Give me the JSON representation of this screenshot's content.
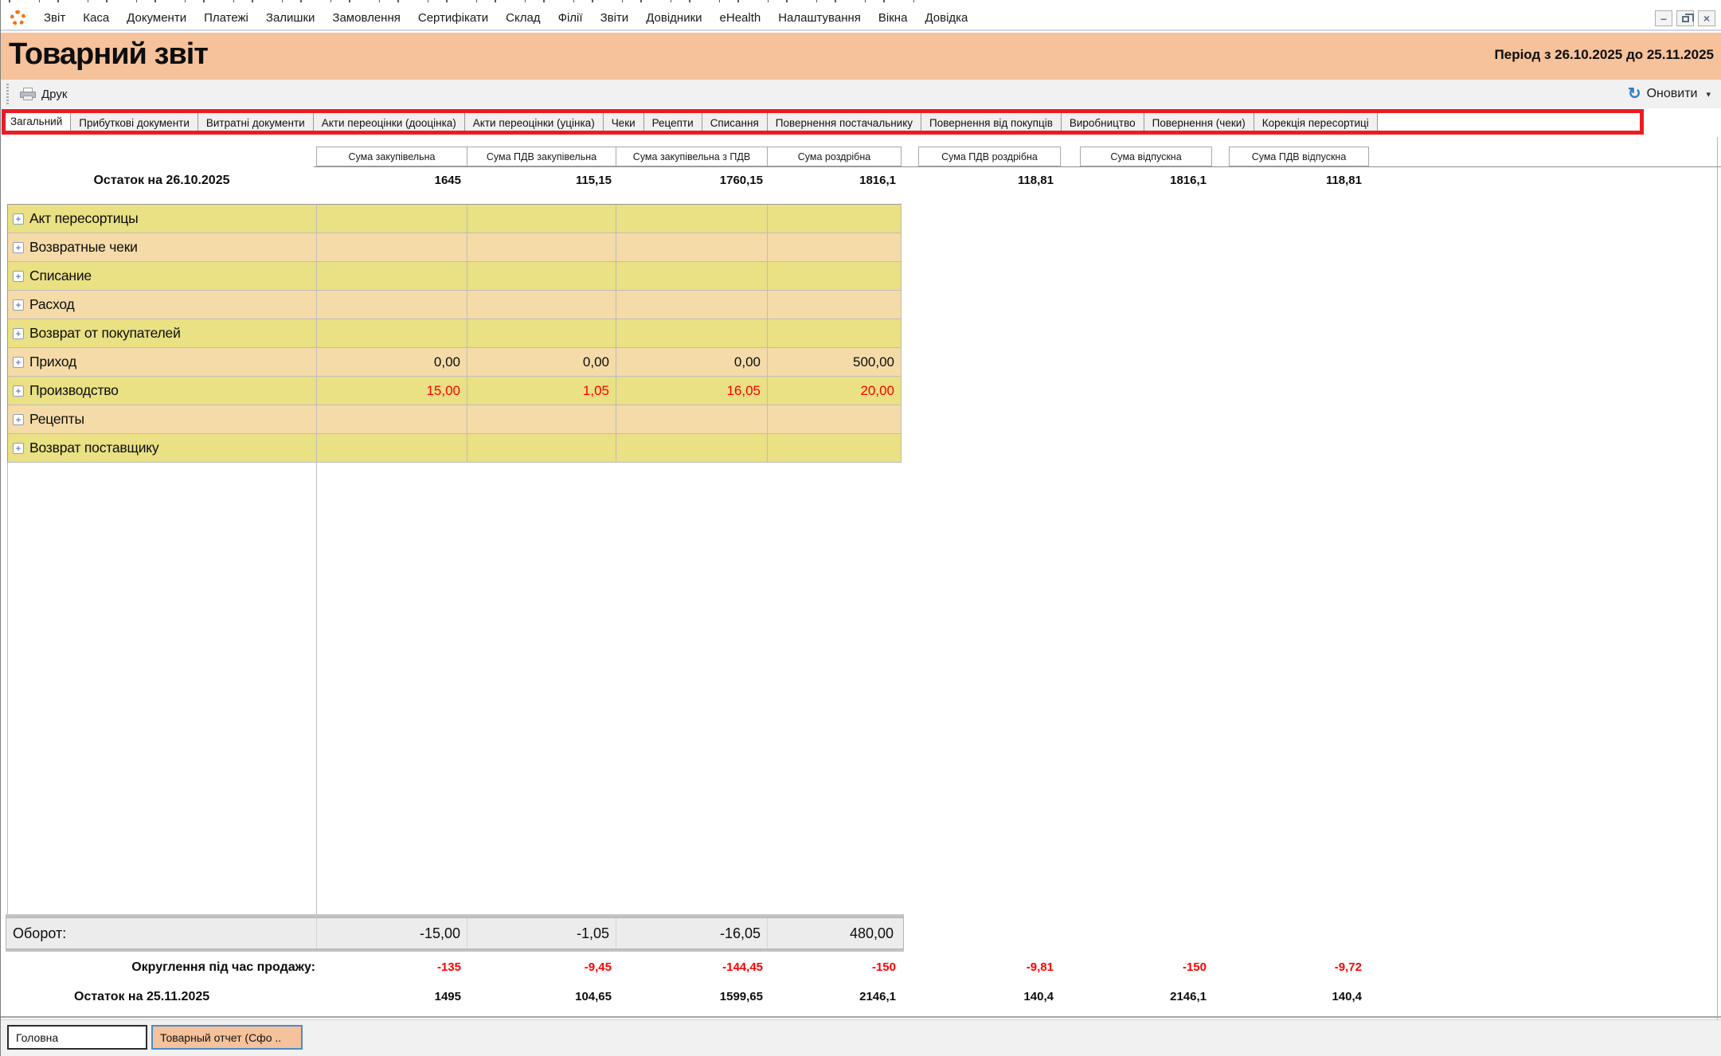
{
  "menu": {
    "items": [
      "Звіт",
      "Каса",
      "Документи",
      "Платежі",
      "Залишки",
      "Замовлення",
      "Сертифікати",
      "Склад",
      "Філії",
      "Звіти",
      "Довідники",
      "eHealth",
      "Налаштування",
      "Вікна",
      "Довідка"
    ]
  },
  "icons": {
    "minimize": "–",
    "close": "×",
    "refresh": "↻",
    "dropdown": "▾",
    "expand": "+"
  },
  "header": {
    "title": "Товарний звіт",
    "period": "Період з 26.10.2025 до 25.11.2025"
  },
  "toolbar": {
    "print_label": "Друк",
    "refresh_label": "Оновити"
  },
  "tabs": {
    "items": [
      "Загальний",
      "Прибуткові документи",
      "Витратні документи",
      "Акти переоцінки (дооцінка)",
      "Акти переоцінки (уцінка)",
      "Чеки",
      "Рецепти",
      "Списання",
      "Повернення постачальнику",
      "Повернення від покупців",
      "Виробництво",
      "Повернення (чеки)",
      "Корекція пересортиці"
    ],
    "active": "Загальний"
  },
  "report": {
    "columns": [
      "Сума закупівельна",
      "Сума ПДВ закупівельна",
      "Сума закупівельна з ПДВ",
      "Сума роздрібна",
      "Сума ПДВ роздрібна",
      "Сума відпускна",
      "Сума ПДВ відпускна"
    ],
    "opening_balance": {
      "label": "Остаток на 26.10.2025",
      "values": [
        "1645",
        "115,15",
        "1760,15",
        "1816,1",
        "118,81",
        "1816,1",
        "118,81"
      ]
    },
    "rows": [
      {
        "label": "Акт пересортицы",
        "values": [
          "",
          "",
          "",
          ""
        ]
      },
      {
        "label": "Возвратные чеки",
        "values": [
          "",
          "",
          "",
          ""
        ]
      },
      {
        "label": "Списание",
        "values": [
          "",
          "",
          "",
          ""
        ]
      },
      {
        "label": "Расход",
        "values": [
          "",
          "",
          "",
          ""
        ]
      },
      {
        "label": "Возврат от покупателей",
        "values": [
          "",
          "",
          "",
          ""
        ]
      },
      {
        "label": "Приход",
        "values": [
          "0,00",
          "0,00",
          "0,00",
          "500,00"
        ]
      },
      {
        "label": "Производство",
        "values": [
          "15,00",
          "1,05",
          "16,05",
          "20,00"
        ]
      },
      {
        "label": "Рецепты",
        "values": [
          "",
          "",
          "",
          ""
        ]
      },
      {
        "label": "Возврат поставщику",
        "values": [
          "",
          "",
          "",
          ""
        ]
      }
    ],
    "turnover": {
      "label": "Оборот:",
      "values": [
        "-15,00",
        "-1,05",
        "-16,05",
        "480,00"
      ]
    },
    "rounding": {
      "label": "Округлення під час продажу:",
      "values": [
        "-135",
        "-9,45",
        "-144,45",
        "-150",
        "-9,81",
        "-150",
        "-9,72"
      ]
    },
    "closing_balance": {
      "label": "Остаток на 25.11.2025",
      "values": [
        "1495",
        "104,65",
        "1599,65",
        "2146,1",
        "140,4",
        "2146,1",
        "140,4"
      ]
    }
  },
  "taskbar": {
    "home_tab": "Головна",
    "report_tab": "Товарный отчет (Сфо .."
  },
  "colors": {
    "title_bar": "#F6C29B",
    "row_yellow": "#EAE084",
    "row_peach": "#F5DBA8",
    "negative_red": "#FE0000",
    "annotation_red": "#EC1B23"
  }
}
